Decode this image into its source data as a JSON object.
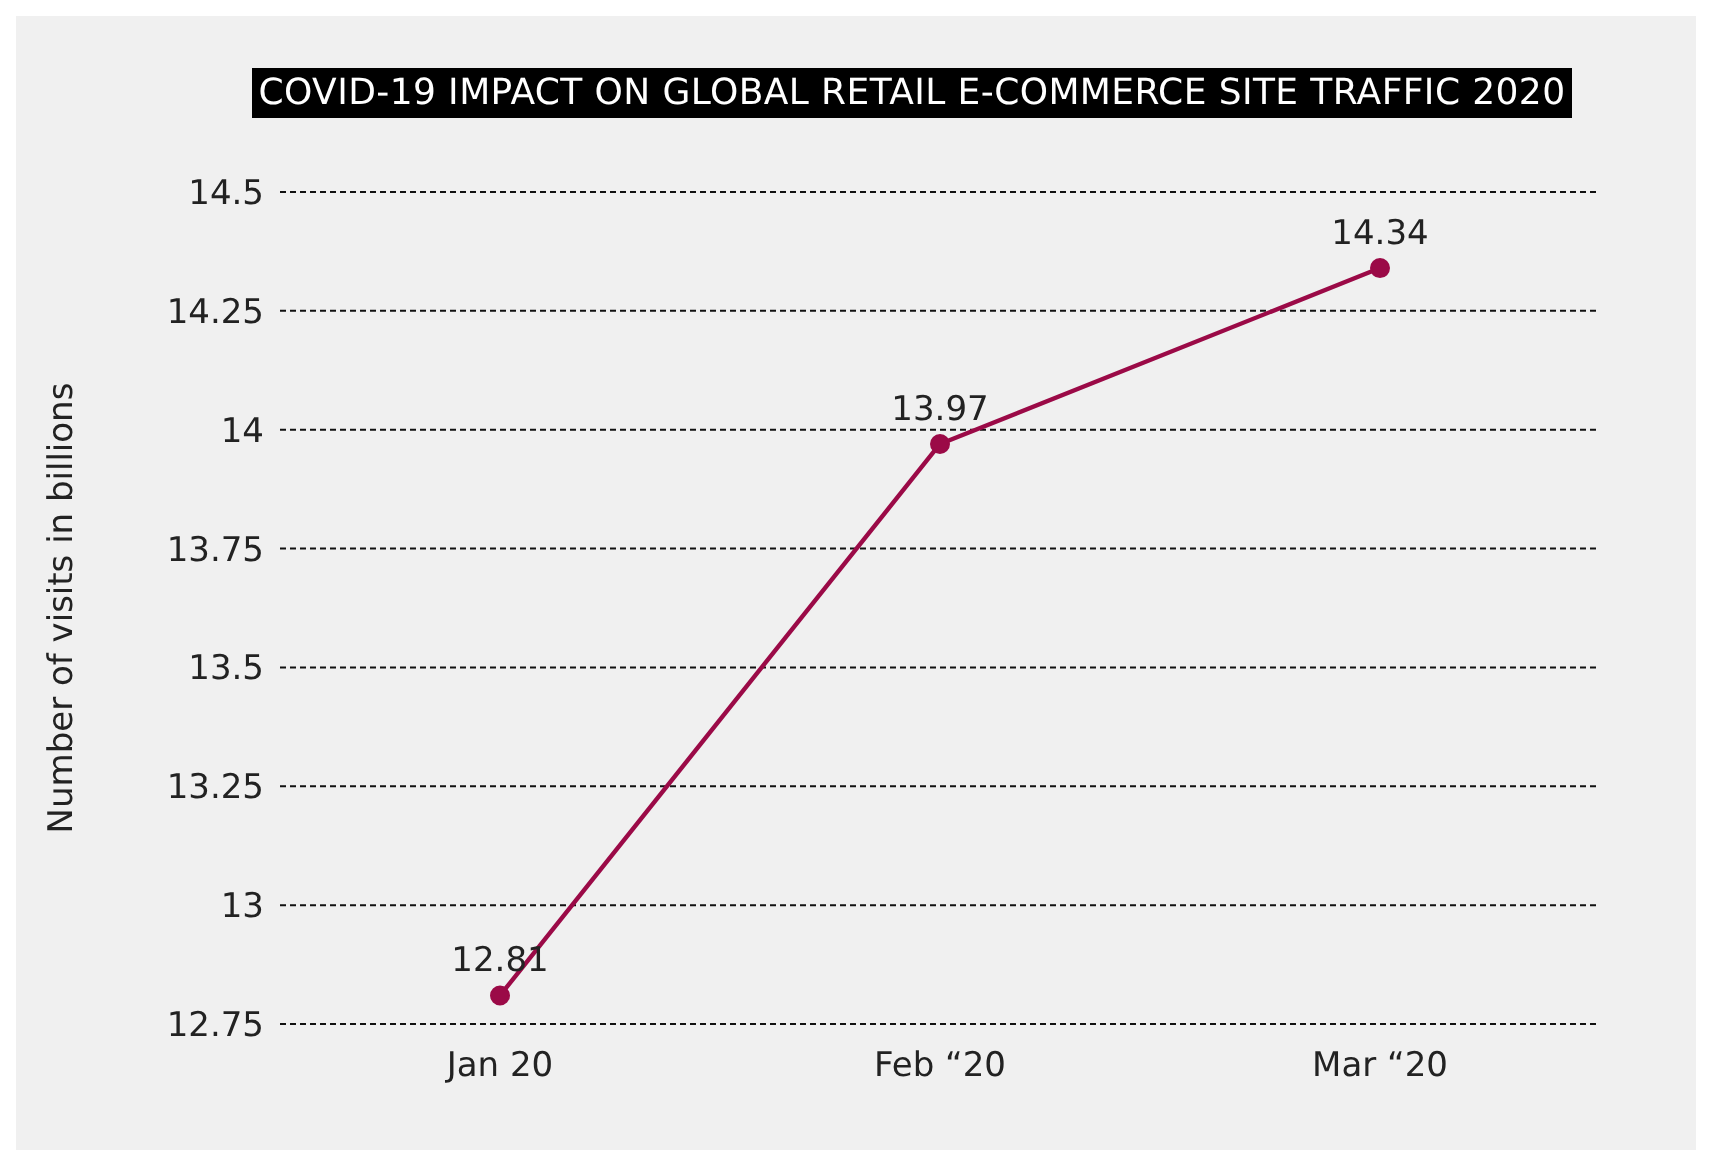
{
  "chart_data": {
    "type": "line",
    "title": "COVID-19 IMPACT ON GLOBAL RETAIL E-COMMERCE SITE TRAFFIC 2020",
    "ylabel": "Number of visits in billions",
    "categories": [
      "Jan 20",
      "Feb “20",
      "Mar “20"
    ],
    "series": [
      {
        "color": "#9b0a47",
        "values": [
          12.81,
          13.97,
          14.34
        ]
      }
    ],
    "ylim": [
      12.75,
      14.5
    ],
    "yticks": [
      12.75,
      13,
      13.25,
      13.5,
      13.75,
      14,
      14.25,
      14.5
    ],
    "grid": "y",
    "marker": "circle",
    "line_style": "solid",
    "data_labels": true,
    "legend": false
  }
}
